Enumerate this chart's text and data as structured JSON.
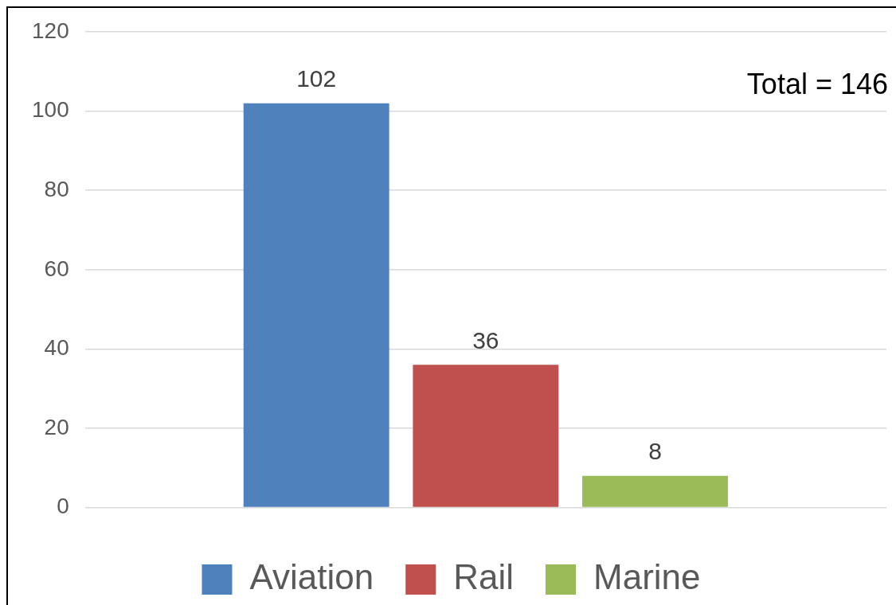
{
  "chart_data": {
    "type": "bar",
    "categories": [
      null
    ],
    "series": [
      {
        "name": "Aviation",
        "color": "#4f81bd",
        "values": [
          102
        ]
      },
      {
        "name": "Rail",
        "color": "#c0504d",
        "values": [
          36
        ]
      },
      {
        "name": "Marine",
        "color": "#9bbb59",
        "values": [
          8
        ]
      }
    ],
    "ylim": [
      0,
      120
    ],
    "yticks": [
      0,
      20,
      40,
      60,
      80,
      100,
      120
    ],
    "grid": "y",
    "legend": "bottom",
    "data_labels": true,
    "annotations": [
      "Total = 146"
    ]
  }
}
